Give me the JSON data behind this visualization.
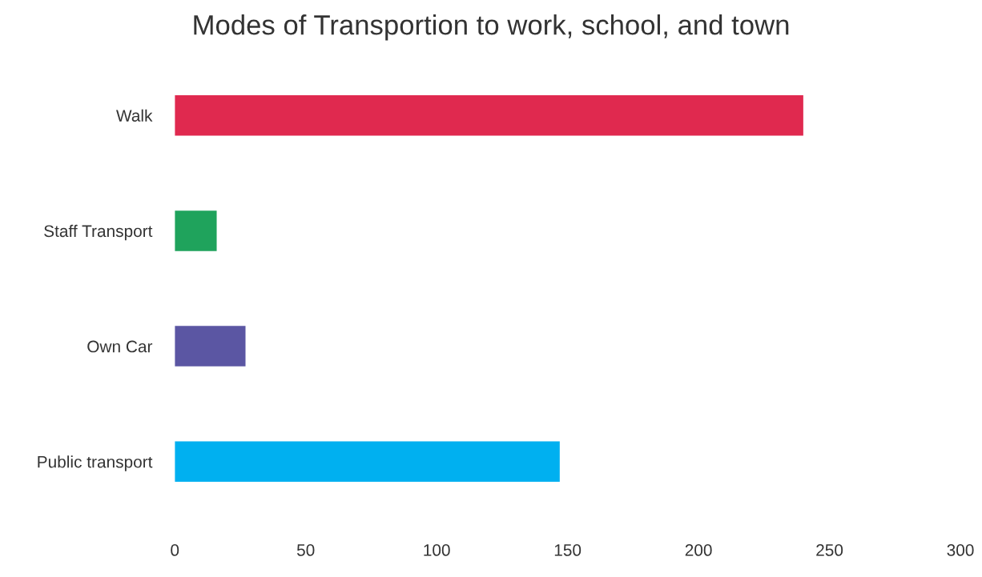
{
  "chart_data": {
    "type": "bar",
    "orientation": "horizontal",
    "title": "Modes of Transportion to work, school, and town",
    "categories": [
      "Walk",
      "Staff Transport",
      "Own Car",
      "Public transport"
    ],
    "values": [
      240,
      16,
      27,
      147
    ],
    "colors": [
      "#e0294f",
      "#1fa35c",
      "#5b56a3",
      "#00b0f0"
    ],
    "xlim": [
      0,
      300
    ],
    "xticks": [
      0,
      50,
      100,
      150,
      200,
      250,
      300
    ],
    "grid": false
  }
}
